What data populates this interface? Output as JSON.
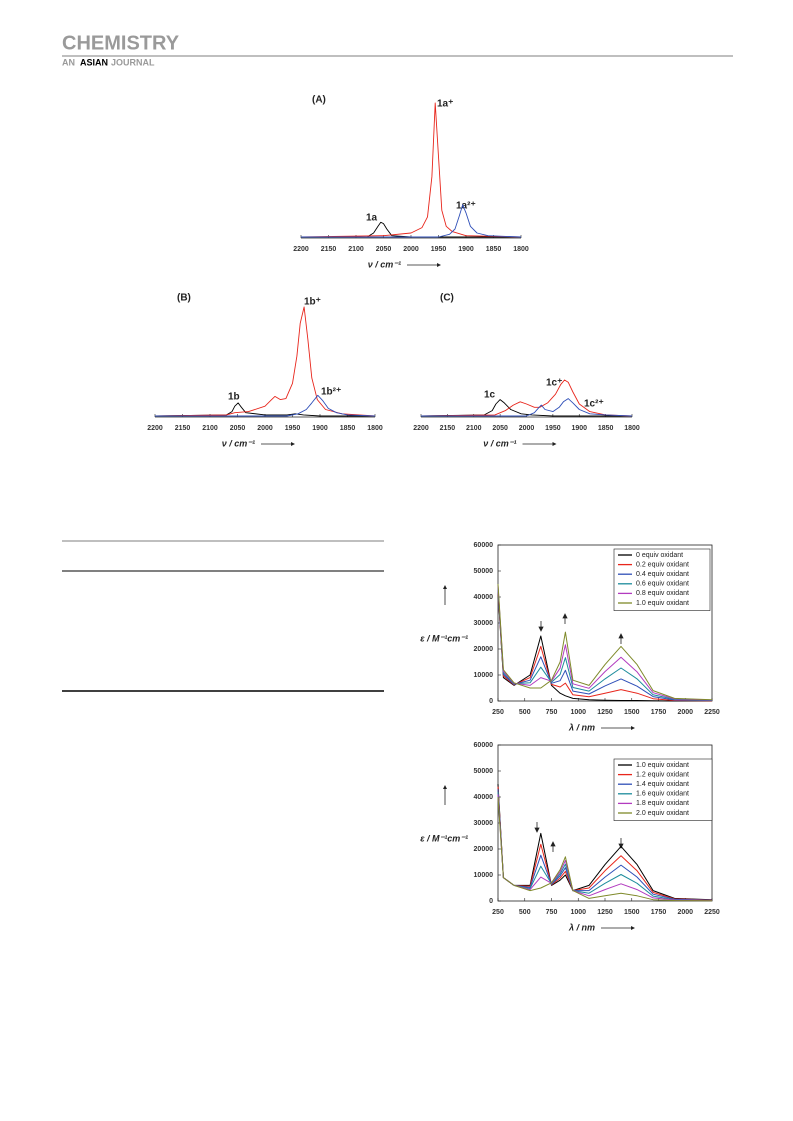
{
  "header": {
    "journal": "CHEMISTRY",
    "sub_pre": "AN",
    "sub_bold": "ASIAN",
    "sub_post": "JOURNAL"
  },
  "chart_data": [
    {
      "type": "line",
      "label": "(A)",
      "xlabel": "ν / cm⁻¹",
      "xlim": [
        2200,
        1800
      ],
      "xticks": [
        2200,
        2150,
        2100,
        2050,
        2000,
        1950,
        1900,
        1850,
        1800
      ],
      "annotations": [
        "1a",
        "1a⁺",
        "1a²⁺"
      ],
      "series": [
        {
          "color": "#000000",
          "x": [
            2200,
            2080,
            2068,
            2060,
            2055,
            2050,
            2044,
            2035,
            2000,
            1800
          ],
          "values": [
            0,
            0,
            3,
            8,
            11,
            10,
            6,
            1,
            0,
            0
          ]
        },
        {
          "color": "#e8261c",
          "x": [
            2200,
            2050,
            2000,
            1980,
            1970,
            1962,
            1956,
            1950,
            1944,
            1936,
            1925,
            1900,
            1800
          ],
          "values": [
            0,
            1,
            3,
            7,
            15,
            45,
            100,
            60,
            20,
            8,
            4,
            1,
            0
          ]
        },
        {
          "color": "#2f4fb8",
          "x": [
            2200,
            1950,
            1930,
            1920,
            1912,
            1906,
            1900,
            1892,
            1880,
            1860,
            1800
          ],
          "values": [
            0,
            0,
            2,
            6,
            16,
            24,
            18,
            8,
            3,
            1,
            0
          ]
        }
      ]
    },
    {
      "type": "line",
      "label": "(B)",
      "xlabel": "ν / cm⁻¹",
      "xlim": [
        2200,
        1800
      ],
      "xticks": [
        2200,
        2150,
        2100,
        2050,
        2000,
        1950,
        1900,
        1850,
        1800
      ],
      "annotations": [
        "1b",
        "1b⁺",
        "1b²⁺"
      ],
      "series": [
        {
          "color": "#000000",
          "x": [
            2200,
            2070,
            2060,
            2055,
            2049,
            2043,
            2035,
            2000,
            1960,
            1945,
            1930,
            1900,
            1800
          ],
          "values": [
            0,
            1,
            4,
            9,
            12,
            8,
            3,
            1,
            1,
            2,
            1,
            0,
            0
          ]
        },
        {
          "color": "#e8261c",
          "x": [
            2200,
            2070,
            2055,
            2030,
            2000,
            1990,
            1982,
            1972,
            1962,
            1950,
            1942,
            1936,
            1929,
            1922,
            1915,
            1905,
            1890,
            1860,
            1800
          ],
          "values": [
            0,
            1,
            3,
            4,
            9,
            14,
            18,
            15,
            16,
            30,
            55,
            85,
            100,
            70,
            35,
            15,
            6,
            2,
            0
          ]
        },
        {
          "color": "#2f4fb8",
          "x": [
            2200,
            1960,
            1940,
            1925,
            1915,
            1904,
            1895,
            1885,
            1870,
            1850,
            1800
          ],
          "values": [
            0,
            0,
            2,
            6,
            12,
            19,
            14,
            7,
            3,
            1,
            0
          ]
        }
      ]
    },
    {
      "type": "line",
      "label": "(C)",
      "xlabel": "ν / cm⁻¹",
      "xlim": [
        2200,
        1800
      ],
      "xticks": [
        2200,
        2150,
        2100,
        2050,
        2000,
        1950,
        1900,
        1850,
        1800
      ],
      "annotations": [
        "1c",
        "1c⁺",
        "1c²⁺"
      ],
      "series": [
        {
          "color": "#000000",
          "x": [
            2200,
            2080,
            2065,
            2058,
            2050,
            2042,
            2030,
            2010,
            1990,
            1950,
            1800
          ],
          "values": [
            0,
            1,
            5,
            11,
            15,
            12,
            6,
            2,
            1,
            0,
            0
          ]
        },
        {
          "color": "#e8261c",
          "x": [
            2200,
            2060,
            2040,
            2025,
            2012,
            2000,
            1985,
            1975,
            1960,
            1945,
            1935,
            1928,
            1921,
            1912,
            1900,
            1880,
            1850,
            1800
          ],
          "values": [
            0,
            1,
            5,
            10,
            13,
            11,
            8,
            8,
            12,
            20,
            29,
            33,
            31,
            22,
            11,
            4,
            1,
            0
          ]
        },
        {
          "color": "#2f4fb8",
          "x": [
            2200,
            2000,
            1985,
            1978,
            1972,
            1965,
            1950,
            1938,
            1930,
            1921,
            1912,
            1900,
            1880,
            1850,
            1800
          ],
          "values": [
            0,
            0,
            3,
            7,
            10,
            6,
            4,
            8,
            13,
            16,
            12,
            6,
            2,
            1,
            0
          ]
        }
      ]
    },
    {
      "type": "line",
      "xlabel": "λ / nm",
      "ylabel": "ε / M⁻¹cm⁻¹",
      "xlim": [
        250,
        2250
      ],
      "ylim": [
        0,
        60000
      ],
      "xticks": [
        250,
        500,
        750,
        1000,
        1250,
        1500,
        1750,
        2000,
        2250
      ],
      "yticks": [
        0,
        10000,
        20000,
        30000,
        40000,
        50000,
        60000
      ],
      "legend": "upper right",
      "x": [
        250,
        300,
        400,
        550,
        650,
        750,
        830,
        880,
        950,
        1100,
        1250,
        1400,
        1550,
        1700,
        1900,
        2250
      ],
      "series": [
        {
          "name": "0 equiv oxidant",
          "color": "#000000",
          "values": [
            42000,
            9000,
            6000,
            10000,
            25000,
            6000,
            3000,
            2000,
            1000,
            500,
            300,
            200,
            200,
            100,
            0,
            0
          ]
        },
        {
          "name": "0.2 equiv oxidant",
          "color": "#e8261c",
          "values": [
            42600,
            9600,
            6200,
            9000,
            21000,
            6400,
            5400,
            6900,
            2400,
            1600,
            3000,
            4400,
            3000,
            900,
            200,
            100
          ]
        },
        {
          "name": "0.4 equiv oxidant",
          "color": "#2f4fb8",
          "values": [
            43200,
            10200,
            6400,
            8000,
            17000,
            6800,
            7800,
            11800,
            3800,
            2700,
            5800,
            8500,
            5700,
            1700,
            400,
            200
          ]
        },
        {
          "name": "0.6 equiv oxidant",
          "color": "#1c8c9c",
          "values": [
            43800,
            10800,
            6600,
            7000,
            13000,
            7200,
            10200,
            16700,
            5200,
            3800,
            8500,
            12700,
            8500,
            2400,
            600,
            300
          ]
        },
        {
          "name": "0.8 equiv oxidant",
          "color": "#b23bbf",
          "values": [
            44400,
            11400,
            6800,
            6000,
            9000,
            7600,
            12600,
            21600,
            6600,
            4900,
            11300,
            16800,
            11200,
            3200,
            800,
            400
          ]
        },
        {
          "name": "1.0 equiv oxidant",
          "color": "#7f8a2a",
          "values": [
            45000,
            12000,
            7000,
            5000,
            5000,
            8000,
            15000,
            26500,
            8000,
            6000,
            14000,
            21000,
            14000,
            4000,
            1000,
            500
          ]
        }
      ]
    },
    {
      "type": "line",
      "xlabel": "λ / nm",
      "ylabel": "ε / M⁻¹cm⁻¹",
      "xlim": [
        250,
        2250
      ],
      "ylim": [
        0,
        60000
      ],
      "xticks": [
        250,
        500,
        750,
        1000,
        1250,
        1500,
        1750,
        2000,
        2250
      ],
      "yticks": [
        0,
        10000,
        20000,
        30000,
        40000,
        50000,
        60000
      ],
      "legend": "upper right",
      "x": [
        250,
        300,
        400,
        550,
        650,
        750,
        830,
        880,
        950,
        1100,
        1250,
        1400,
        1550,
        1700,
        1900,
        2250
      ],
      "series": [
        {
          "name": "1.0 equiv oxidant",
          "color": "#000000",
          "values": [
            45000,
            9000,
            6000,
            6000,
            26000,
            6000,
            8000,
            10000,
            4000,
            6000,
            14000,
            21000,
            14000,
            4000,
            1000,
            500
          ]
        },
        {
          "name": "1.2 equiv oxidant",
          "color": "#e8261c",
          "values": [
            44000,
            9000,
            6000,
            5600,
            21800,
            6200,
            8800,
            11400,
            4000,
            5000,
            11600,
            17400,
            11600,
            3300,
            800,
            400
          ]
        },
        {
          "name": "1.4 equiv oxidant",
          "color": "#2f4fb8",
          "values": [
            43000,
            9000,
            6000,
            5200,
            17600,
            6400,
            9600,
            12800,
            4000,
            4000,
            9200,
            13800,
            9200,
            2600,
            700,
            300
          ]
        },
        {
          "name": "1.6 equiv oxidant",
          "color": "#1c8c9c",
          "values": [
            42000,
            9000,
            6000,
            4800,
            13400,
            6600,
            10400,
            14200,
            4000,
            3000,
            6800,
            10200,
            6800,
            1900,
            500,
            200
          ]
        },
        {
          "name": "1.8 equiv oxidant",
          "color": "#b23bbf",
          "values": [
            41000,
            9000,
            6000,
            4400,
            9200,
            6800,
            11200,
            15600,
            4000,
            2000,
            4400,
            6600,
            4400,
            1200,
            400,
            200
          ]
        },
        {
          "name": "2.0 equiv oxidant",
          "color": "#7f8a2a",
          "values": [
            40000,
            9000,
            6000,
            4000,
            5000,
            7000,
            12000,
            17000,
            4000,
            1000,
            2000,
            3000,
            2000,
            500,
            200,
            100
          ]
        }
      ]
    }
  ]
}
